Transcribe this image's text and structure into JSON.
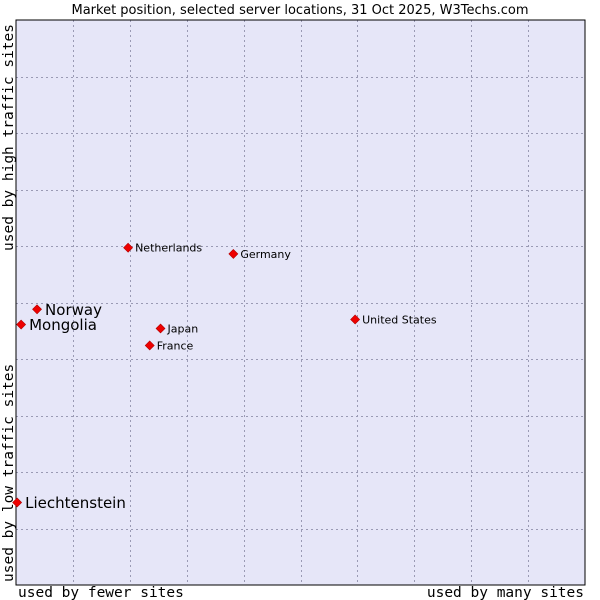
{
  "chart_data": {
    "type": "scatter",
    "title": "Market position, selected server locations, 31 Oct 2025, W3Techs.com",
    "xlabel_left": "used by fewer sites",
    "xlabel_right": "used by many sites",
    "ylabel_top": "used by high traffic sites",
    "ylabel_bottom": "used by low traffic sites",
    "xlim": [
      0,
      10
    ],
    "ylim": [
      0,
      10
    ],
    "grid": true,
    "colors": {
      "plot_bg": "#e6e6f8",
      "grid": "#9a9ab4",
      "marker": "#ee0000",
      "frame": "#000000"
    },
    "points": [
      {
        "name": "Netherlands",
        "x": 1.97,
        "y": 5.97,
        "emphasis": false
      },
      {
        "name": "Germany",
        "x": 3.82,
        "y": 5.86,
        "emphasis": false
      },
      {
        "name": "Norway",
        "x": 0.37,
        "y": 4.88,
        "emphasis": true
      },
      {
        "name": "Mongolia",
        "x": 0.09,
        "y": 4.61,
        "emphasis": true
      },
      {
        "name": "United States",
        "x": 5.96,
        "y": 4.7,
        "emphasis": false
      },
      {
        "name": "Japan",
        "x": 2.54,
        "y": 4.54,
        "emphasis": false
      },
      {
        "name": "France",
        "x": 2.35,
        "y": 4.24,
        "emphasis": false
      },
      {
        "name": "Liechtenstein",
        "x": 0.02,
        "y": 1.46,
        "emphasis": true
      }
    ]
  }
}
